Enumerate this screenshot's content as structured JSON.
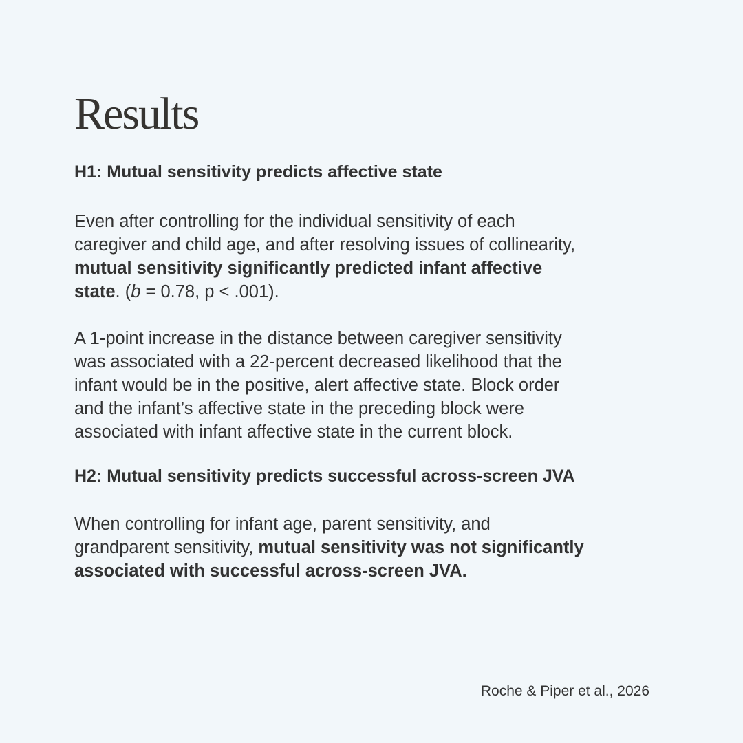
{
  "title": "Results",
  "h1": {
    "heading": "H1: Mutual sensitivity predicts affective state",
    "p1": {
      "l1": "Even after controlling for the individual sensitivity of each",
      "l2": "caregiver and child age, and after resolving issues of collinearity,",
      "l3": "mutual sensitivity significantly predicted infant affective",
      "l4_bold": "state",
      "l4_a": ". (",
      "l4_italic": "b",
      "l4_b": " = 0.78, p < .001)."
    },
    "p2": [
      "A 1-point increase in the distance between caregiver sensitivity",
      "was associated with a 22-percent decreased likelihood that the",
      "infant would be in the positive, alert affective state. Block order",
      "and the infant’s affective state in the preceding block were",
      "associated with infant affective state in the current block."
    ]
  },
  "h2": {
    "heading": "H2: Mutual sensitivity predicts successful across-screen JVA",
    "p": {
      "l1": "When controlling for infant age, parent sensitivity, and",
      "l2": "grandparent sensitivity, ",
      "l2_bold": "mutual sensitivity was not significantly",
      "l3_bold": "associated with successful across-screen JVA."
    }
  },
  "citation": "Roche & Piper et al., 2026"
}
